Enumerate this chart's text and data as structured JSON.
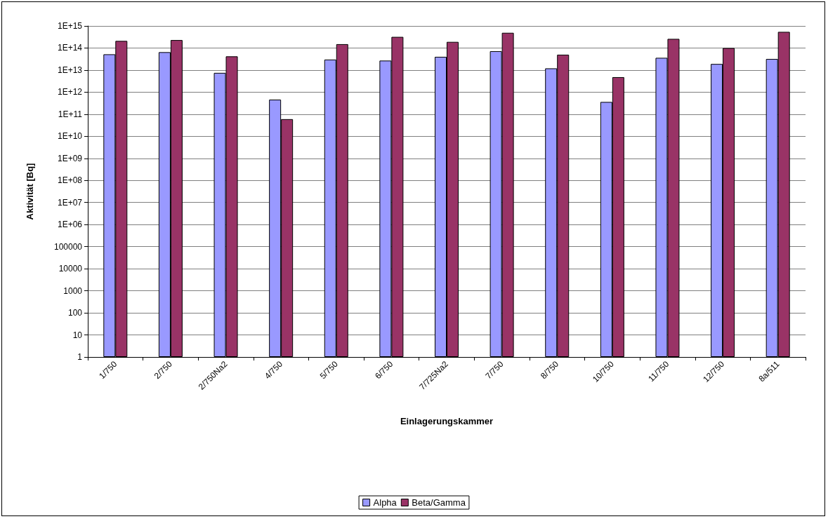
{
  "chart_data": {
    "type": "bar",
    "xlabel": "Einlagerungskammer",
    "ylabel": "Aktivität [Bq]",
    "categories": [
      "1/750",
      "2/750",
      "2/750Na2",
      "4/750",
      "5/750",
      "6/750",
      "7/725Na2",
      "7/750",
      "8/750",
      "10/750",
      "11/750",
      "12/750",
      "8a/511"
    ],
    "series": [
      {
        "name": "Alpha",
        "color": "#9999ff",
        "values": [
          52000000000000.0,
          65000000000000.0,
          7500000000000.0,
          460000000000.0,
          30000000000000.0,
          27000000000000.0,
          40000000000000.0,
          72000000000000.0,
          12000000000000.0,
          360000000000.0,
          36000000000000.0,
          19000000000000.0,
          32000000000000.0
        ]
      },
      {
        "name": "Beta/Gamma",
        "color": "#993366",
        "values": [
          210000000000000.0,
          230000000000000.0,
          42000000000000.0,
          60000000000.0,
          150000000000000.0,
          320000000000000.0,
          190000000000000.0,
          490000000000000.0,
          50000000000000.0,
          4800000000000.0,
          260000000000000.0,
          100000000000000.0,
          540000000000000.0
        ]
      }
    ],
    "log": "y",
    "ylim": [
      1,
      1000000000000000.0
    ],
    "yticks": [
      1,
      10,
      100,
      1000,
      10000,
      100000,
      {
        "value": 1000000.0,
        "label": "1E+06"
      },
      {
        "value": 10000000.0,
        "label": "1E+07"
      },
      {
        "value": 100000000.0,
        "label": "1E+08"
      },
      {
        "value": 1000000000.0,
        "label": "1E+09"
      },
      {
        "value": 10000000000.0,
        "label": "1E+10"
      },
      {
        "value": 100000000000.0,
        "label": "1E+11"
      },
      {
        "value": 1000000000000.0,
        "label": "1E+12"
      },
      {
        "value": 10000000000000.0,
        "label": "1E+13"
      },
      {
        "value": 100000000000000.0,
        "label": "1E+14"
      },
      {
        "value": 1000000000000000.0,
        "label": "1E+15"
      }
    ],
    "grid": "y",
    "legend": "bottom"
  }
}
